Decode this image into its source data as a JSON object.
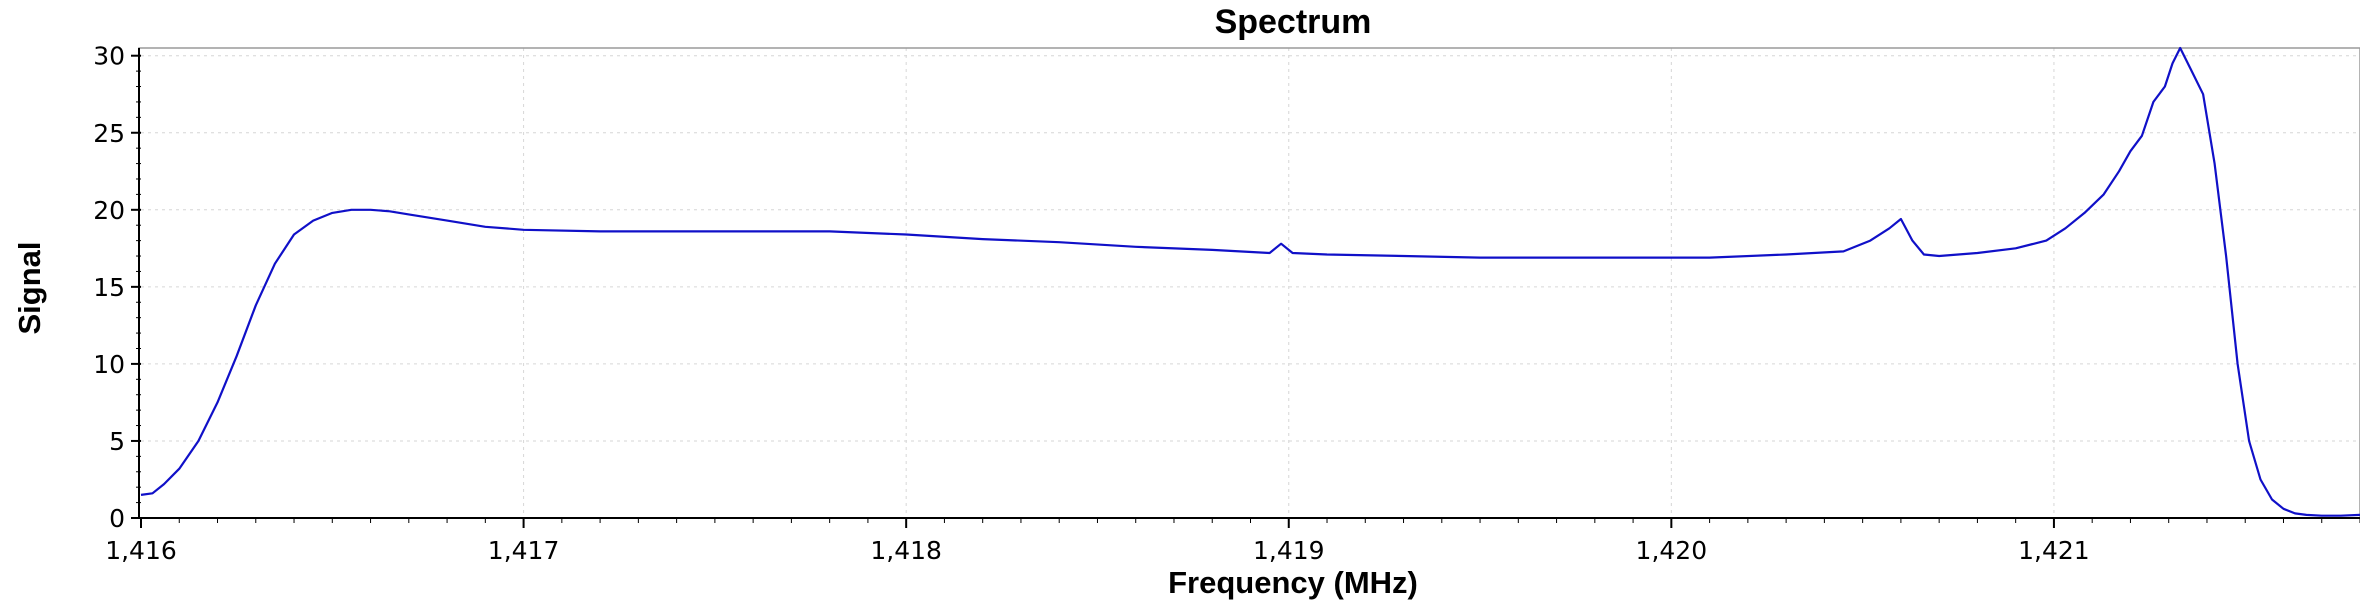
{
  "chart_data": {
    "type": "line",
    "title": "Spectrum",
    "xlabel": "Frequency (MHz)",
    "ylabel": "Signal",
    "xlim": [
      1416.0,
      1421.8
    ],
    "ylim": [
      0,
      30.5
    ],
    "grid": true,
    "x_ticks": [
      {
        "value": 1416,
        "label": "1,416"
      },
      {
        "value": 1417,
        "label": "1,417"
      },
      {
        "value": 1418,
        "label": "1,418"
      },
      {
        "value": 1419,
        "label": "1,419"
      },
      {
        "value": 1420,
        "label": "1,420"
      },
      {
        "value": 1421,
        "label": "1,421"
      }
    ],
    "y_ticks": [
      {
        "value": 0,
        "label": "0"
      },
      {
        "value": 5,
        "label": "5"
      },
      {
        "value": 10,
        "label": "10"
      },
      {
        "value": 15,
        "label": "15"
      },
      {
        "value": 20,
        "label": "20"
      },
      {
        "value": 25,
        "label": "25"
      },
      {
        "value": 30,
        "label": "30"
      }
    ],
    "series": [
      {
        "color": "#1010c8",
        "x": [
          1416.0,
          1416.03,
          1416.06,
          1416.1,
          1416.15,
          1416.2,
          1416.25,
          1416.3,
          1416.35,
          1416.4,
          1416.45,
          1416.5,
          1416.55,
          1416.6,
          1416.65,
          1416.7,
          1416.8,
          1416.9,
          1417.0,
          1417.2,
          1417.4,
          1417.6,
          1417.8,
          1418.0,
          1418.2,
          1418.4,
          1418.6,
          1418.8,
          1418.95,
          1418.98,
          1419.01,
          1419.1,
          1419.3,
          1419.5,
          1419.7,
          1419.9,
          1420.1,
          1420.3,
          1420.45,
          1420.52,
          1420.57,
          1420.6,
          1420.63,
          1420.66,
          1420.7,
          1420.8,
          1420.9,
          1420.98,
          1421.03,
          1421.08,
          1421.13,
          1421.17,
          1421.2,
          1421.23,
          1421.26,
          1421.29,
          1421.31,
          1421.33,
          1421.36,
          1421.39,
          1421.42,
          1421.45,
          1421.48,
          1421.51,
          1421.54,
          1421.57,
          1421.6,
          1421.63,
          1421.66,
          1421.7,
          1421.75,
          1421.8
        ],
        "y": [
          1.5,
          1.6,
          2.2,
          3.2,
          5.0,
          7.5,
          10.5,
          13.8,
          16.5,
          18.4,
          19.3,
          19.8,
          20.0,
          20.0,
          19.9,
          19.7,
          19.3,
          18.9,
          18.7,
          18.6,
          18.6,
          18.6,
          18.6,
          18.4,
          18.1,
          17.9,
          17.6,
          17.4,
          17.2,
          17.8,
          17.2,
          17.1,
          17.0,
          16.9,
          16.9,
          16.9,
          16.9,
          17.1,
          17.3,
          18.0,
          18.8,
          19.4,
          18.0,
          17.1,
          17.0,
          17.2,
          17.5,
          18.0,
          18.8,
          19.8,
          21.0,
          22.5,
          23.8,
          24.8,
          27.0,
          28.0,
          29.5,
          30.5,
          29.0,
          27.5,
          23.0,
          17.0,
          10.0,
          5.0,
          2.5,
          1.2,
          0.6,
          0.3,
          0.2,
          0.15,
          0.15,
          0.2
        ]
      },
      {
        "color": "#4aa7b6",
        "x": [
          1416.0,
          1421.8
        ],
        "y": [
          0.0,
          0.0
        ]
      }
    ]
  }
}
